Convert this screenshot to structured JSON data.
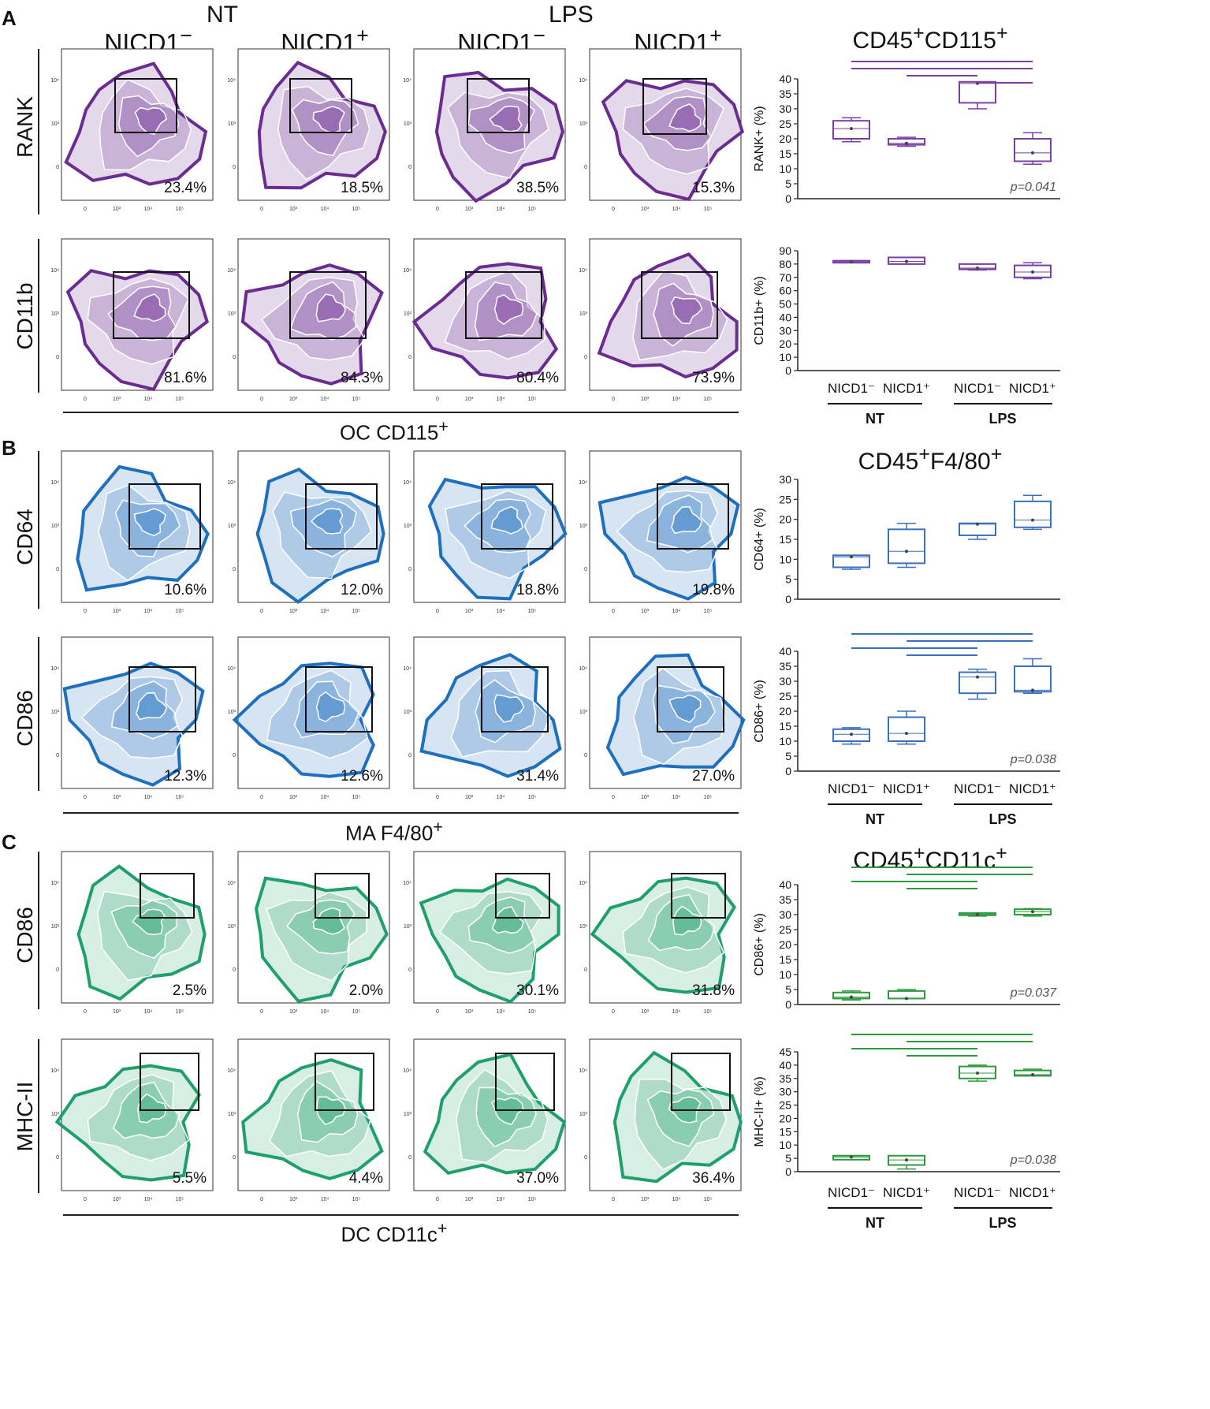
{
  "panels": [
    {
      "letter": "A",
      "title": "CD45+CD115+",
      "title_main": "CD45",
      "title_sup1": "+",
      "title_mid": "CD115",
      "title_sup2": "+",
      "x_axis_label": "OC CD115",
      "x_axis_sup": "+",
      "flow_color": "#6a2c91",
      "box_color": "#7b3fa3",
      "rows": [
        {
          "marker": "RANK",
          "gates": [
            "23.4%",
            "18.5%",
            "38.5%",
            "15.3%"
          ]
        },
        {
          "marker": "CD11b",
          "gates": [
            "81.6%",
            "84.3%",
            "80.4%",
            "73.9%"
          ]
        }
      ]
    },
    {
      "letter": "B",
      "title_main": "CD45",
      "title_sup1": "+",
      "title_mid": "F4/80",
      "title_sup2": "+",
      "x_axis_label": "MA F4/80",
      "x_axis_sup": "+",
      "flow_color": "#1f6fbf",
      "box_color": "#3b6fc0",
      "rows": [
        {
          "marker": "CD64",
          "gates": [
            "10.6%",
            "12.0%",
            "18.8%",
            "19.8%"
          ]
        },
        {
          "marker": "CD86",
          "gates": [
            "12.3%",
            "12.6%",
            "31.4%",
            "27.0%"
          ]
        }
      ]
    },
    {
      "letter": "C",
      "title_main": "CD45",
      "title_sup1": "+",
      "title_mid": "CD11c",
      "title_sup2": "+",
      "x_axis_label": "DC CD11c",
      "x_axis_sup": "+",
      "flow_color": "#1fa06a",
      "box_color": "#2e9a3e",
      "rows": [
        {
          "marker": "CD86",
          "gates": [
            "2.5%",
            "2.0%",
            "30.1%",
            "31.8%"
          ]
        },
        {
          "marker": "MHC-II",
          "gates": [
            "5.5%",
            "4.4%",
            "37.0%",
            "36.4%"
          ]
        }
      ]
    }
  ],
  "groups": {
    "nt": "NT",
    "lps": "LPS"
  },
  "columns": [
    "NICD1⁻",
    "NICD1⁺",
    "NICD1⁻",
    "NICD1⁺"
  ],
  "col_main": "NICD1",
  "col_sup": [
    "−",
    "+",
    "−",
    "+"
  ],
  "chart_data": [
    {
      "type": "box",
      "ylabel": "RANK+ (%)",
      "ylim": [
        0,
        40
      ],
      "yticks": [
        0,
        5,
        10,
        15,
        20,
        25,
        30,
        35,
        40
      ],
      "color": "#7b3fa3",
      "pvalue": "p=0.041",
      "boxes": [
        {
          "q1": 20,
          "median": 23.4,
          "q3": 26,
          "min": 19,
          "max": 27
        },
        {
          "q1": 18,
          "median": 18.5,
          "q3": 20,
          "min": 17.5,
          "max": 20.5
        },
        {
          "q1": 32,
          "median": 38.5,
          "q3": 39,
          "min": 30,
          "max": 39
        },
        {
          "q1": 12.5,
          "median": 15.3,
          "q3": 20,
          "min": 11.5,
          "max": 22
        }
      ],
      "sig_pairs": [
        [
          0,
          3
        ],
        [
          0,
          3
        ],
        [
          1,
          2
        ],
        [
          2,
          3
        ]
      ]
    },
    {
      "type": "box",
      "ylabel": "CD11b+ (%)",
      "ylim": [
        0,
        90
      ],
      "yticks": [
        0,
        10,
        20,
        30,
        40,
        50,
        60,
        70,
        80,
        90
      ],
      "color": "#7b3fa3",
      "pvalue": "",
      "boxes": [
        {
          "q1": 81,
          "median": 81.6,
          "q3": 82.5,
          "min": 81,
          "max": 82.5
        },
        {
          "q1": 80,
          "median": 82,
          "q3": 85,
          "min": 80,
          "max": 85
        },
        {
          "q1": 76,
          "median": 77,
          "q3": 80,
          "min": 75.5,
          "max": 80
        },
        {
          "q1": 70,
          "median": 74,
          "q3": 79,
          "min": 69,
          "max": 81
        }
      ],
      "sig_pairs": []
    },
    {
      "type": "box",
      "ylabel": "CD64+ (%)",
      "ylim": [
        0,
        30
      ],
      "yticks": [
        0,
        5,
        10,
        15,
        20,
        25,
        30
      ],
      "color": "#3b6fc0",
      "pvalue": "",
      "boxes": [
        {
          "q1": 8,
          "median": 10.6,
          "q3": 11,
          "min": 7.5,
          "max": 11
        },
        {
          "q1": 9,
          "median": 12,
          "q3": 17.5,
          "min": 8,
          "max": 19
        },
        {
          "q1": 16,
          "median": 18.8,
          "q3": 19,
          "min": 15,
          "max": 19
        },
        {
          "q1": 18,
          "median": 19.8,
          "q3": 24.5,
          "min": 17.5,
          "max": 26
        }
      ],
      "sig_pairs": []
    },
    {
      "type": "box",
      "ylabel": "CD86+ (%)",
      "ylim": [
        0,
        40
      ],
      "yticks": [
        0,
        5,
        10,
        15,
        20,
        25,
        30,
        35,
        40
      ],
      "color": "#3b6fc0",
      "pvalue": "p=0.038",
      "boxes": [
        {
          "q1": 10,
          "median": 12.3,
          "q3": 14,
          "min": 9,
          "max": 14.5
        },
        {
          "q1": 10,
          "median": 12.6,
          "q3": 18,
          "min": 9,
          "max": 20
        },
        {
          "q1": 26,
          "median": 31.4,
          "q3": 33,
          "min": 24,
          "max": 34
        },
        {
          "q1": 26.5,
          "median": 27,
          "q3": 35,
          "min": 26,
          "max": 37.5
        }
      ],
      "sig_pairs": [
        [
          0,
          3
        ],
        [
          1,
          3
        ],
        [
          0,
          2
        ],
        [
          1,
          2
        ]
      ]
    },
    {
      "type": "box",
      "ylabel": "CD86+ (%)",
      "ylim": [
        0,
        40
      ],
      "yticks": [
        0,
        5,
        10,
        15,
        20,
        25,
        30,
        35,
        40
      ],
      "color": "#2e9a3e",
      "pvalue": "p=0.037",
      "boxes": [
        {
          "q1": 2,
          "median": 2.5,
          "q3": 4,
          "min": 1.5,
          "max": 4.5
        },
        {
          "q1": 2,
          "median": 2,
          "q3": 4.5,
          "min": 2,
          "max": 5
        },
        {
          "q1": 29.8,
          "median": 30.1,
          "q3": 30.5,
          "min": 29.5,
          "max": 30.5
        },
        {
          "q1": 30,
          "median": 31,
          "q3": 31.8,
          "min": 29.5,
          "max": 32
        }
      ],
      "sig_pairs": [
        [
          0,
          3
        ],
        [
          1,
          3
        ],
        [
          0,
          2
        ],
        [
          1,
          2
        ]
      ]
    },
    {
      "type": "box",
      "ylabel": "MHC-II+ (%)",
      "ylim": [
        0,
        45
      ],
      "yticks": [
        0,
        5,
        10,
        15,
        20,
        25,
        30,
        35,
        40,
        45
      ],
      "color": "#2e9a3e",
      "pvalue": "p=0.038",
      "boxes": [
        {
          "q1": 4.5,
          "median": 5.5,
          "q3": 6,
          "min": 4.5,
          "max": 6
        },
        {
          "q1": 2.5,
          "median": 4.4,
          "q3": 6,
          "min": 1,
          "max": 6
        },
        {
          "q1": 35,
          "median": 37,
          "q3": 39.5,
          "min": 34,
          "max": 40
        },
        {
          "q1": 36,
          "median": 36.4,
          "q3": 38,
          "min": 36,
          "max": 38.5
        }
      ],
      "sig_pairs": [
        [
          0,
          3
        ],
        [
          1,
          3
        ],
        [
          0,
          2
        ],
        [
          1,
          2
        ]
      ]
    }
  ]
}
